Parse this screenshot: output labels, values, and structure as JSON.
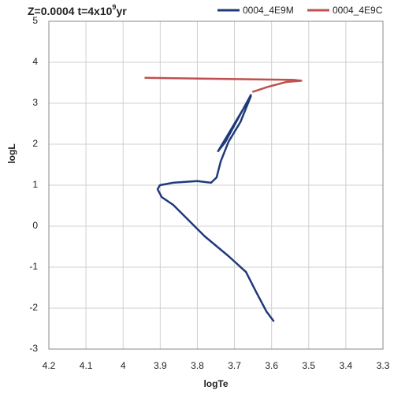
{
  "chart_data": {
    "type": "line",
    "title_parts": [
      "Z=0.0004 t=4x10",
      "9",
      "yr"
    ],
    "x_label": "logTe",
    "y_label": "logL",
    "xlim": [
      4.2,
      3.3
    ],
    "xticks": [
      4.2,
      4.1,
      4,
      3.9,
      3.8,
      3.7,
      3.6,
      3.5,
      3.4,
      3.3
    ],
    "ylim": [
      -3,
      5
    ],
    "yticks": [
      -3,
      -2,
      -1,
      0,
      1,
      2,
      3,
      4,
      5
    ],
    "grid": true,
    "legend": "top",
    "series": [
      {
        "name": "0004_4E9M",
        "color": "#1f3a7a",
        "x": [
          3.595,
          3.614,
          3.642,
          3.669,
          3.716,
          3.78,
          3.822,
          3.865,
          3.896,
          3.907,
          3.901,
          3.865,
          3.8,
          3.763,
          3.748,
          3.737,
          3.716,
          3.684,
          3.656,
          3.744,
          3.725,
          3.656
        ],
        "values": [
          -2.31,
          -2.08,
          -1.6,
          -1.12,
          -0.73,
          -0.25,
          0.13,
          0.52,
          0.71,
          0.9,
          1.0,
          1.06,
          1.1,
          1.06,
          1.19,
          1.58,
          2.06,
          2.54,
          3.17,
          1.83,
          2.05,
          3.2
        ]
      },
      {
        "name": "0004_4E9C",
        "color": "#c0504d",
        "x": [
          3.65,
          3.61,
          3.56,
          3.52,
          3.54,
          3.94
        ],
        "values": [
          3.28,
          3.4,
          3.52,
          3.55,
          3.57,
          3.62
        ]
      }
    ]
  }
}
